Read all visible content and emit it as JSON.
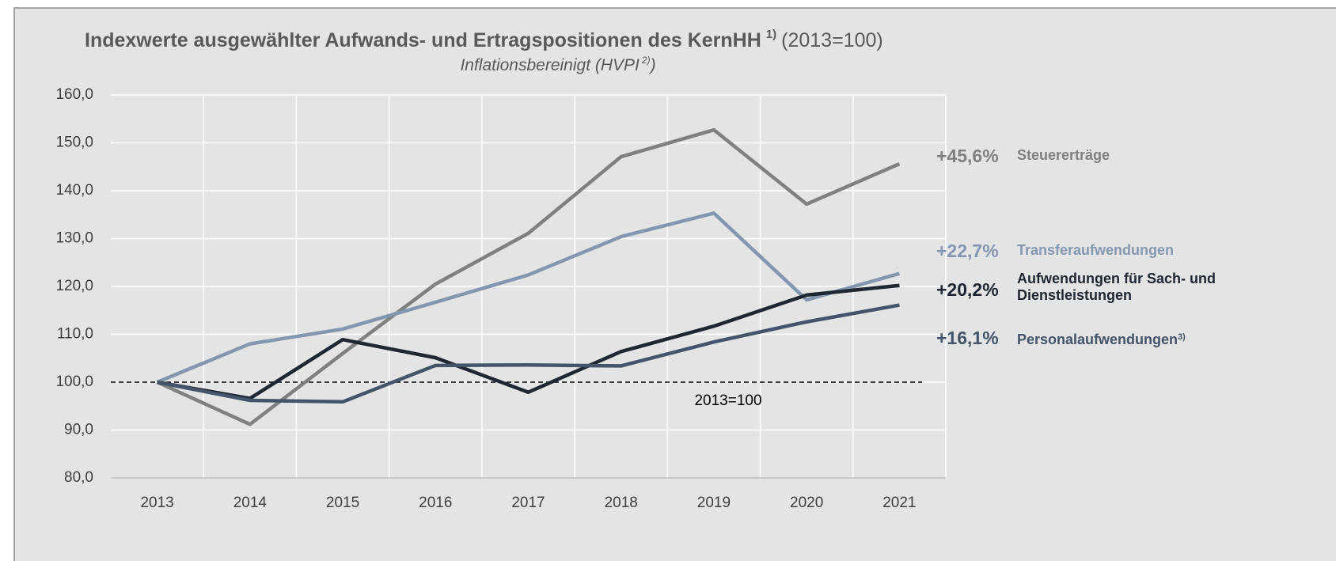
{
  "chart_data": {
    "type": "line",
    "title": "Indexwerte ausgewählter Aufwands- und Ertragspositionen des KernHH",
    "title_note": "1)",
    "title_suffix": "(2013=100)",
    "subtitle": "Inflationsbereinigt (HVPI",
    "subtitle_note": "2)",
    "subtitle_end": ")",
    "categories": [
      "2013",
      "2014",
      "2015",
      "2016",
      "2017",
      "2018",
      "2019",
      "2020",
      "2021"
    ],
    "ylim": [
      80,
      160
    ],
    "yticks": [
      {
        "value": 80,
        "label": "80,0"
      },
      {
        "value": 90,
        "label": "90,0"
      },
      {
        "value": 100,
        "label": "100,0"
      },
      {
        "value": 110,
        "label": "110,0"
      },
      {
        "value": 120,
        "label": "120,0"
      },
      {
        "value": 130,
        "label": "130,0"
      },
      {
        "value": 140,
        "label": "140,0"
      },
      {
        "value": 150,
        "label": "150,0"
      },
      {
        "value": 160,
        "label": "160,0"
      }
    ],
    "grid": true,
    "reference": {
      "value": 100,
      "label": "2013=100"
    },
    "series": [
      {
        "name": "Steuererträge",
        "color": "#808080",
        "change_label": "+45,6%",
        "values": [
          100,
          91.2,
          106.0,
          120.5,
          131.1,
          147.1,
          152.7,
          137.2,
          145.6
        ]
      },
      {
        "name": "Transferaufwendungen",
        "color": "#8497b0",
        "change_label": "+22,7%",
        "values": [
          100,
          108.0,
          111.1,
          116.7,
          122.4,
          130.4,
          135.3,
          117.2,
          122.7
        ]
      },
      {
        "name": "Aufwendungen für Sach- und Dienstleistungen",
        "color": "#1e2732",
        "change_label": "+20,2%",
        "values": [
          100,
          96.6,
          108.9,
          105.1,
          97.9,
          106.4,
          111.7,
          118.2,
          120.2
        ]
      },
      {
        "name": "Personalaufwendungen",
        "note": "3)",
        "color": "#44546a",
        "change_label": "+16,1%",
        "values": [
          100,
          96.2,
          95.9,
          103.5,
          103.6,
          103.4,
          108.4,
          112.6,
          116.1
        ]
      }
    ]
  }
}
